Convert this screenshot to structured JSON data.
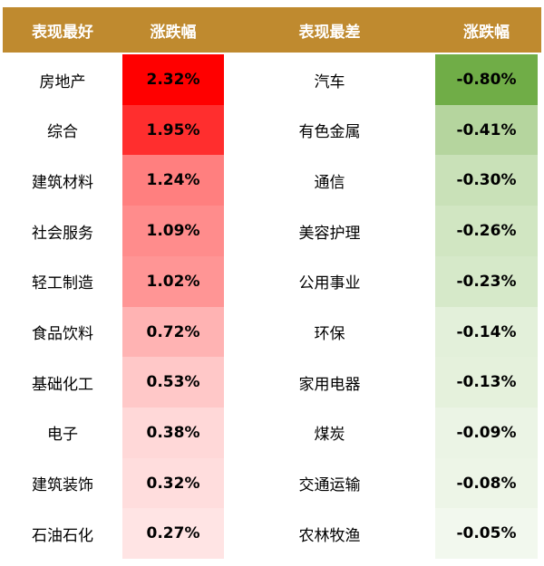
{
  "table": {
    "headers": [
      "表现最好",
      "涨跌幅",
      "表现最差",
      "涨跌幅"
    ],
    "rows": [
      [
        "房地产",
        "2.32%",
        "汽车",
        "-0.80%"
      ],
      [
        "综合",
        "1.95%",
        "有色金属",
        "-0.41%"
      ],
      [
        "建筑材料",
        "1.24%",
        "通信",
        "-0.30%"
      ],
      [
        "社会服务",
        "1.09%",
        "美容护理",
        "-0.26%"
      ],
      [
        "轻工制造",
        "1.02%",
        "公用事业",
        "-0.23%"
      ],
      [
        "食品饮料",
        "0.72%",
        "环保",
        "-0.14%"
      ],
      [
        "基础化工",
        "0.53%",
        "家用电器",
        "-0.13%"
      ],
      [
        "电子",
        "0.38%",
        "煤炭",
        "-0.09%"
      ],
      [
        "建筑装饰",
        "0.32%",
        "交通运输",
        "-0.08%"
      ],
      [
        "石油石化",
        "0.27%",
        "农林牧渔",
        "-0.05%"
      ]
    ]
  }
}
